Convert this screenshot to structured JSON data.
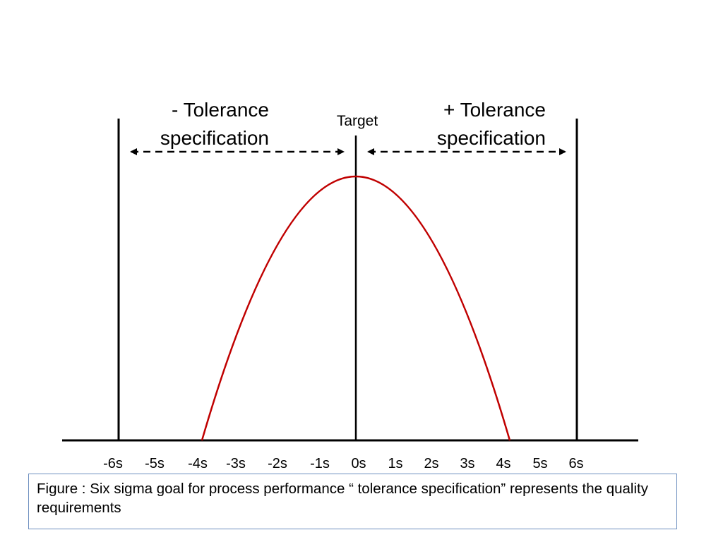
{
  "labels": {
    "minus_tolerance_line1": "- Tolerance",
    "minus_tolerance_line2": "specification",
    "target": "Target",
    "plus_tolerance_line1": "+ Tolerance",
    "plus_tolerance_line2": "specification"
  },
  "axis_ticks": [
    "-6s",
    "-5s",
    "-4s",
    "-3s",
    "-2s",
    "-1s",
    "0s",
    "1s",
    "2s",
    "3s",
    "4s",
    "5s",
    "6s"
  ],
  "caption": "Figure : Six sigma goal for process performance “ tolerance specification” represents the quality requirements",
  "colors": {
    "curve": "#c00000",
    "lines": "#000000",
    "caption_border": "#6d8fbf"
  }
}
